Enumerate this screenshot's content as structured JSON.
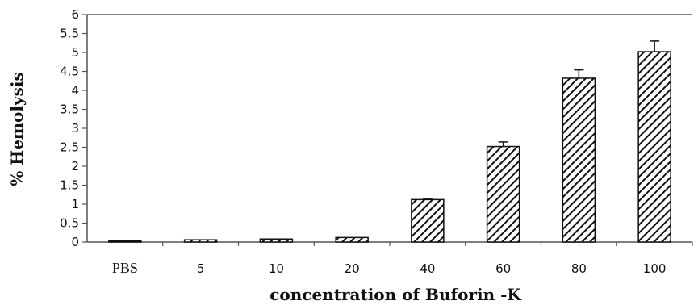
{
  "chart_data": {
    "type": "bar",
    "title": "",
    "xlabel": "concentration of Buforin -K",
    "ylabel": "% Hemolysis",
    "categories": [
      "PBS",
      "5",
      "10",
      "20",
      "40",
      "60",
      "80",
      "100"
    ],
    "values": [
      0.02,
      0.06,
      0.08,
      0.12,
      1.12,
      2.52,
      4.32,
      5.02
    ],
    "errors": [
      0.0,
      0.0,
      0.0,
      0.0,
      0.03,
      0.12,
      0.22,
      0.28
    ],
    "ylim": [
      0,
      6
    ],
    "yticks": [
      "0",
      "0.5",
      "1",
      "1.5",
      "2",
      "2.5",
      "3",
      "3.5",
      "4",
      "4.5",
      "5",
      "5.5",
      "6"
    ],
    "ytick_values": [
      0,
      0.5,
      1,
      1.5,
      2,
      2.5,
      3,
      3.5,
      4,
      4.5,
      5,
      5.5,
      6
    ],
    "grid": false,
    "legend": "none",
    "bar_fill": "diagonal-hatch",
    "colors": {
      "bar_stroke": "#111111",
      "hatch": "#111111",
      "axis": "#555555",
      "background": "#ffffff"
    }
  }
}
